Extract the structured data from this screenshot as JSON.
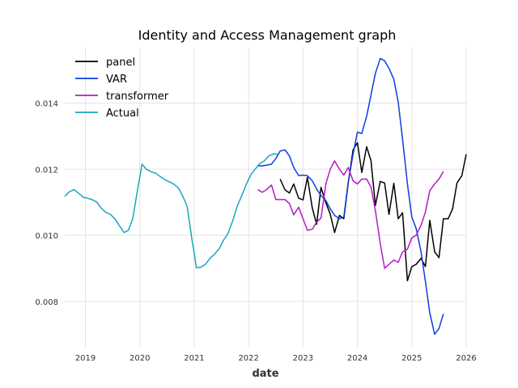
{
  "chart_data": {
    "type": "line",
    "title": "Identity and Access Management graph",
    "xlabel": "date",
    "ylabel": "",
    "xlim": [
      2018.62,
      2026.0
    ],
    "ylim": [
      0.0066,
      0.0157
    ],
    "x_ticks": [
      {
        "value": 2019,
        "label": "2019"
      },
      {
        "value": 2020,
        "label": "2020"
      },
      {
        "value": 2021,
        "label": "2021"
      },
      {
        "value": 2022,
        "label": "2022"
      },
      {
        "value": 2023,
        "label": "2023"
      },
      {
        "value": 2024,
        "label": "2024"
      },
      {
        "value": 2025,
        "label": "2025"
      },
      {
        "value": 2026,
        "label": "2026"
      }
    ],
    "y_ticks": [
      {
        "value": 0.008,
        "label": "0.008"
      },
      {
        "value": 0.01,
        "label": "0.010"
      },
      {
        "value": 0.012,
        "label": "0.012"
      },
      {
        "value": 0.014,
        "label": "0.014"
      }
    ],
    "grid": true,
    "legend_position": "top-left",
    "series": [
      {
        "name": "panel",
        "color": "#000000",
        "points": [
          [
            2022.58,
            0.0117
          ],
          [
            2022.67,
            0.01137
          ],
          [
            2022.75,
            0.01128
          ],
          [
            2022.83,
            0.01155
          ],
          [
            2022.92,
            0.01112
          ],
          [
            2023.0,
            0.01107
          ],
          [
            2023.08,
            0.01175
          ],
          [
            2023.17,
            0.01083
          ],
          [
            2023.25,
            0.01033
          ],
          [
            2023.33,
            0.01145
          ],
          [
            2023.42,
            0.01098
          ],
          [
            2023.5,
            0.01064
          ],
          [
            2023.58,
            0.01008
          ],
          [
            2023.67,
            0.0106
          ],
          [
            2023.75,
            0.0105
          ],
          [
            2023.83,
            0.01157
          ],
          [
            2023.92,
            0.01258
          ],
          [
            2024.0,
            0.0128
          ],
          [
            2024.08,
            0.0119
          ],
          [
            2024.17,
            0.01268
          ],
          [
            2024.25,
            0.01225
          ],
          [
            2024.33,
            0.0109
          ],
          [
            2024.42,
            0.01163
          ],
          [
            2024.5,
            0.01158
          ],
          [
            2024.58,
            0.01063
          ],
          [
            2024.67,
            0.01157
          ],
          [
            2024.75,
            0.0105
          ],
          [
            2024.83,
            0.01068
          ],
          [
            2024.92,
            0.00862
          ],
          [
            2025.0,
            0.00905
          ],
          [
            2025.08,
            0.00912
          ],
          [
            2025.17,
            0.0093
          ],
          [
            2025.25,
            0.00905
          ],
          [
            2025.33,
            0.01045
          ],
          [
            2025.42,
            0.0095
          ],
          [
            2025.5,
            0.00932
          ],
          [
            2025.58,
            0.0105
          ],
          [
            2025.67,
            0.0105
          ],
          [
            2025.75,
            0.0108
          ],
          [
            2025.83,
            0.01158
          ],
          [
            2025.92,
            0.0118
          ],
          [
            2026.0,
            0.01245
          ]
        ]
      },
      {
        "name": "VAR",
        "color": "#0b3ee0",
        "points": [
          [
            2022.17,
            0.0121
          ],
          [
            2022.25,
            0.0121
          ],
          [
            2022.33,
            0.01212
          ],
          [
            2022.42,
            0.01215
          ],
          [
            2022.5,
            0.01232
          ],
          [
            2022.58,
            0.01255
          ],
          [
            2022.67,
            0.01258
          ],
          [
            2022.75,
            0.0124
          ],
          [
            2022.83,
            0.01205
          ],
          [
            2022.92,
            0.0118
          ],
          [
            2023.0,
            0.01182
          ],
          [
            2023.08,
            0.0118
          ],
          [
            2023.17,
            0.01165
          ],
          [
            2023.25,
            0.0114
          ],
          [
            2023.33,
            0.0112
          ],
          [
            2023.42,
            0.01105
          ],
          [
            2023.5,
            0.0108
          ],
          [
            2023.58,
            0.0106
          ],
          [
            2023.67,
            0.0105
          ],
          [
            2023.75,
            0.01055
          ],
          [
            2023.83,
            0.0116
          ],
          [
            2023.92,
            0.01245
          ],
          [
            2024.0,
            0.01312
          ],
          [
            2024.08,
            0.01308
          ],
          [
            2024.17,
            0.0136
          ],
          [
            2024.25,
            0.01425
          ],
          [
            2024.33,
            0.0149
          ],
          [
            2024.42,
            0.01535
          ],
          [
            2024.5,
            0.01528
          ],
          [
            2024.58,
            0.01505
          ],
          [
            2024.67,
            0.01472
          ],
          [
            2024.75,
            0.01403
          ],
          [
            2024.83,
            0.0129
          ],
          [
            2024.92,
            0.01155
          ],
          [
            2025.0,
            0.01055
          ],
          [
            2025.08,
            0.0102
          ],
          [
            2025.17,
            0.0095
          ],
          [
            2025.25,
            0.0086
          ],
          [
            2025.33,
            0.00765
          ],
          [
            2025.42,
            0.007
          ],
          [
            2025.5,
            0.00718
          ],
          [
            2025.58,
            0.00762
          ]
        ]
      },
      {
        "name": "transformer",
        "color": "#b618c8",
        "points": [
          [
            2022.17,
            0.01138
          ],
          [
            2022.25,
            0.0113
          ],
          [
            2022.33,
            0.01138
          ],
          [
            2022.42,
            0.01152
          ],
          [
            2022.5,
            0.01108
          ],
          [
            2022.58,
            0.01108
          ],
          [
            2022.67,
            0.01108
          ],
          [
            2022.75,
            0.01096
          ],
          [
            2022.83,
            0.01062
          ],
          [
            2022.92,
            0.01085
          ],
          [
            2023.0,
            0.0105
          ],
          [
            2023.08,
            0.01015
          ],
          [
            2023.17,
            0.01018
          ],
          [
            2023.25,
            0.0104
          ],
          [
            2023.33,
            0.01052
          ],
          [
            2023.42,
            0.01155
          ],
          [
            2023.5,
            0.012
          ],
          [
            2023.58,
            0.01225
          ],
          [
            2023.67,
            0.012
          ],
          [
            2023.75,
            0.01182
          ],
          [
            2023.83,
            0.01205
          ],
          [
            2023.92,
            0.01165
          ],
          [
            2024.0,
            0.01155
          ],
          [
            2024.08,
            0.0117
          ],
          [
            2024.17,
            0.0117
          ],
          [
            2024.25,
            0.01145
          ],
          [
            2024.33,
            0.01075
          ],
          [
            2024.42,
            0.00975
          ],
          [
            2024.5,
            0.009
          ],
          [
            2024.58,
            0.00912
          ],
          [
            2024.67,
            0.00925
          ],
          [
            2024.75,
            0.00918
          ],
          [
            2024.83,
            0.0095
          ],
          [
            2024.92,
            0.00958
          ],
          [
            2025.0,
            0.00992
          ],
          [
            2025.08,
            0.01
          ],
          [
            2025.17,
            0.0103
          ],
          [
            2025.25,
            0.0107
          ],
          [
            2025.33,
            0.01135
          ],
          [
            2025.42,
            0.01155
          ],
          [
            2025.5,
            0.0117
          ],
          [
            2025.58,
            0.01193
          ]
        ]
      },
      {
        "name": "Actual",
        "color": "#17a8bc",
        "points": [
          [
            2018.62,
            0.01118
          ],
          [
            2018.71,
            0.01132
          ],
          [
            2018.79,
            0.01138
          ],
          [
            2018.87,
            0.01128
          ],
          [
            2018.96,
            0.01115
          ],
          [
            2019.04,
            0.01112
          ],
          [
            2019.12,
            0.01108
          ],
          [
            2019.21,
            0.011
          ],
          [
            2019.29,
            0.01082
          ],
          [
            2019.37,
            0.0107
          ],
          [
            2019.46,
            0.01063
          ],
          [
            2019.54,
            0.0105
          ],
          [
            2019.62,
            0.0103
          ],
          [
            2019.71,
            0.01008
          ],
          [
            2019.79,
            0.01015
          ],
          [
            2019.87,
            0.0105
          ],
          [
            2019.96,
            0.0114
          ],
          [
            2020.0,
            0.01175
          ],
          [
            2020.04,
            0.01215
          ],
          [
            2020.12,
            0.012
          ],
          [
            2020.21,
            0.01192
          ],
          [
            2020.29,
            0.01188
          ],
          [
            2020.37,
            0.01178
          ],
          [
            2020.46,
            0.01168
          ],
          [
            2020.54,
            0.01162
          ],
          [
            2020.62,
            0.01155
          ],
          [
            2020.71,
            0.01143
          ],
          [
            2020.79,
            0.01118
          ],
          [
            2020.87,
            0.01088
          ],
          [
            2020.96,
            0.00985
          ],
          [
            2021.0,
            0.00945
          ],
          [
            2021.04,
            0.00902
          ],
          [
            2021.12,
            0.00903
          ],
          [
            2021.21,
            0.00913
          ],
          [
            2021.29,
            0.0093
          ],
          [
            2021.37,
            0.00942
          ],
          [
            2021.46,
            0.0096
          ],
          [
            2021.54,
            0.00985
          ],
          [
            2021.62,
            0.01005
          ],
          [
            2021.71,
            0.01045
          ],
          [
            2021.79,
            0.01088
          ],
          [
            2021.87,
            0.01118
          ],
          [
            2021.96,
            0.01155
          ],
          [
            2022.04,
            0.01183
          ],
          [
            2022.12,
            0.012
          ],
          [
            2022.21,
            0.01218
          ],
          [
            2022.29,
            0.01225
          ],
          [
            2022.37,
            0.0124
          ],
          [
            2022.46,
            0.01246
          ],
          [
            2022.54,
            0.01245
          ]
        ]
      }
    ]
  }
}
